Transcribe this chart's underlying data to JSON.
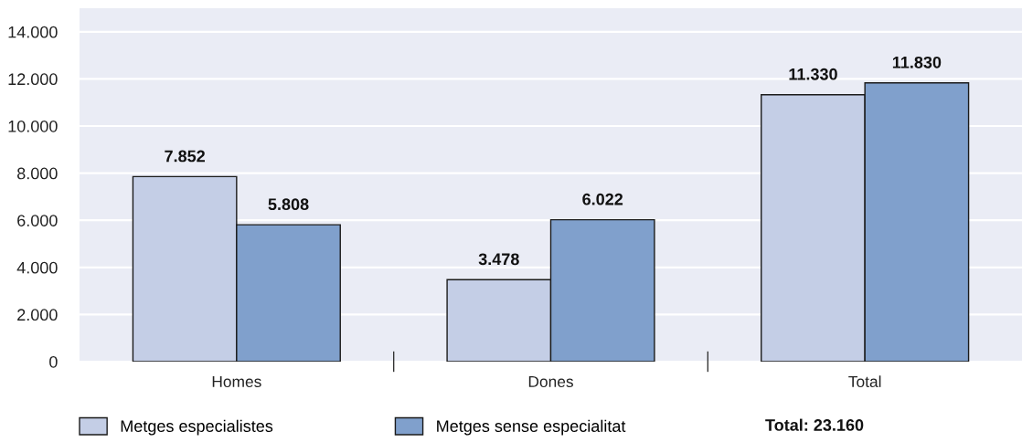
{
  "chart_data": {
    "type": "bar",
    "categories": [
      "Homes",
      "Dones",
      "Total"
    ],
    "series": [
      {
        "name": "Metges especialistes",
        "color": "#c4cee6",
        "values": [
          7852,
          3478,
          11330
        ],
        "value_labels": [
          "7.852",
          "3.478",
          "11.330"
        ]
      },
      {
        "name": "Metges sense especialitat",
        "color": "#80a0cc",
        "values": [
          5808,
          6022,
          11830
        ],
        "value_labels": [
          "5.808",
          "6.022",
          "11.830"
        ]
      }
    ],
    "ylim": [
      0,
      15000
    ],
    "yticks": [
      0,
      {
        "value": 2000,
        "label": "2.000"
      },
      {
        "value": 4000,
        "label": "4.000"
      },
      {
        "value": 6000,
        "label": "6.000"
      },
      {
        "value": 8000,
        "label": "8.000"
      },
      {
        "value": 10000,
        "label": "10.000"
      },
      {
        "value": 12000,
        "label": "12.000"
      },
      {
        "value": 14000,
        "label": "14.000"
      }
    ],
    "grid": "y",
    "legend": "bottom",
    "annotations": [
      "Total: 23.160"
    ]
  }
}
